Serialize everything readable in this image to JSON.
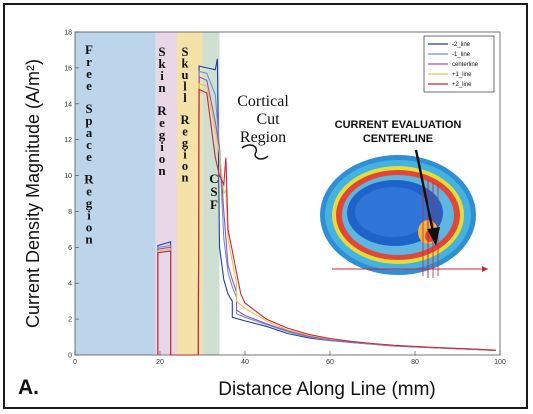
{
  "panel_label": "A.",
  "chart_data": {
    "type": "line",
    "xlabel": "Distance Along Line (mm)",
    "ylabel": "Current Density Magnitude (A/m²)",
    "xlim": [
      0,
      100
    ],
    "ylim": [
      0,
      18
    ],
    "x_ticks": [
      0,
      20,
      40,
      60,
      80,
      100
    ],
    "y_ticks": [
      0,
      2,
      4,
      6,
      8,
      10,
      12,
      14,
      16,
      18
    ],
    "regions": [
      {
        "label": "Free Space Region",
        "x_start": 0,
        "x_end": 19,
        "color": "#bcd5ea"
      },
      {
        "label": "Skin Region",
        "x_start": 19,
        "x_end": 24,
        "color": "#e9d6e6"
      },
      {
        "label": "Skull Region",
        "x_start": 24,
        "x_end": 30,
        "color": "#f4e2a8"
      },
      {
        "label": "CSF",
        "x_start": 30,
        "x_end": 34,
        "color": "#cfe0d2"
      }
    ],
    "annotations": [
      "Cortical Cut Region",
      "CURRENT EVALUATION CENTERLINE"
    ],
    "legend_position": "top-right",
    "series": [
      {
        "name": "-2_line",
        "color": "#1f3f9e",
        "points": [
          [
            19.5,
            0
          ],
          [
            19.5,
            6.1
          ],
          [
            22.5,
            6.3
          ],
          [
            22.5,
            0
          ],
          [
            29,
            0
          ],
          [
            29.2,
            16.1
          ],
          [
            31,
            16.0
          ],
          [
            33,
            15.9
          ],
          [
            33.5,
            16.5
          ],
          [
            34,
            6
          ],
          [
            35,
            4.2
          ],
          [
            36,
            3.4
          ],
          [
            37,
            3.0
          ],
          [
            37,
            2.1
          ],
          [
            40,
            1.9
          ],
          [
            45,
            1.6
          ],
          [
            50,
            1.2
          ],
          [
            55,
            0.95
          ],
          [
            60,
            0.8
          ],
          [
            65,
            0.7
          ],
          [
            70,
            0.6
          ],
          [
            75,
            0.5
          ],
          [
            80,
            0.45
          ],
          [
            85,
            0.4
          ],
          [
            90,
            0.35
          ],
          [
            95,
            0.3
          ],
          [
            99,
            0.25
          ]
        ]
      },
      {
        "name": "-1_line",
        "color": "#6a91d6",
        "points": [
          [
            19.5,
            0
          ],
          [
            19.5,
            6.0
          ],
          [
            22.5,
            6.1
          ],
          [
            22.5,
            0
          ],
          [
            29,
            0
          ],
          [
            29.2,
            15.8
          ],
          [
            31,
            15.7
          ],
          [
            33,
            14.5
          ],
          [
            34,
            11.5
          ],
          [
            35,
            6.5
          ],
          [
            36,
            4.6
          ],
          [
            37,
            3.8
          ],
          [
            38,
            3.2
          ],
          [
            38,
            2.3
          ],
          [
            40,
            2.1
          ],
          [
            45,
            1.7
          ],
          [
            50,
            1.3
          ],
          [
            55,
            1.0
          ],
          [
            60,
            0.82
          ],
          [
            65,
            0.7
          ],
          [
            70,
            0.6
          ],
          [
            75,
            0.5
          ],
          [
            80,
            0.45
          ],
          [
            85,
            0.4
          ],
          [
            90,
            0.35
          ],
          [
            95,
            0.3
          ],
          [
            99,
            0.25
          ]
        ]
      },
      {
        "name": "centerline",
        "color": "#9c52b8",
        "points": [
          [
            19.5,
            0
          ],
          [
            19.5,
            5.9
          ],
          [
            22.5,
            6.0
          ],
          [
            22.5,
            0
          ],
          [
            29,
            0
          ],
          [
            29.2,
            15.5
          ],
          [
            31,
            15.3
          ],
          [
            33,
            13.0
          ],
          [
            34,
            11.5
          ],
          [
            35,
            8.0
          ],
          [
            36,
            5.0
          ],
          [
            37,
            4.2
          ],
          [
            38,
            3.5
          ],
          [
            38,
            2.5
          ],
          [
            40,
            2.2
          ],
          [
            45,
            1.75
          ],
          [
            50,
            1.35
          ],
          [
            55,
            1.05
          ],
          [
            60,
            0.85
          ],
          [
            65,
            0.72
          ],
          [
            70,
            0.62
          ],
          [
            75,
            0.52
          ],
          [
            80,
            0.46
          ],
          [
            85,
            0.4
          ],
          [
            90,
            0.35
          ],
          [
            95,
            0.3
          ],
          [
            99,
            0.25
          ]
        ]
      },
      {
        "name": "+1_line",
        "color": "#e6c34a",
        "points": [
          [
            19.5,
            0
          ],
          [
            19.5,
            5.8
          ],
          [
            22.5,
            5.9
          ],
          [
            22.5,
            0
          ],
          [
            29,
            0
          ],
          [
            29.2,
            15.1
          ],
          [
            31,
            15.0
          ],
          [
            33,
            12.5
          ],
          [
            34,
            11.2
          ],
          [
            35,
            9.0
          ],
          [
            35.5,
            9.2
          ],
          [
            36,
            6.5
          ],
          [
            37,
            5.2
          ],
          [
            38,
            4.0
          ],
          [
            38,
            3.0
          ],
          [
            40,
            2.6
          ],
          [
            45,
            1.9
          ],
          [
            50,
            1.4
          ],
          [
            55,
            1.1
          ],
          [
            60,
            0.9
          ],
          [
            65,
            0.75
          ],
          [
            70,
            0.63
          ],
          [
            75,
            0.53
          ],
          [
            80,
            0.47
          ],
          [
            85,
            0.41
          ],
          [
            90,
            0.36
          ],
          [
            95,
            0.31
          ],
          [
            99,
            0.26
          ]
        ]
      },
      {
        "name": "+2_line",
        "color": "#c8263a",
        "points": [
          [
            19.5,
            0
          ],
          [
            19.5,
            5.7
          ],
          [
            22.5,
            5.8
          ],
          [
            22.5,
            0
          ],
          [
            29,
            0
          ],
          [
            29.2,
            14.8
          ],
          [
            31,
            14.6
          ],
          [
            33,
            11.0
          ],
          [
            34,
            10.0
          ],
          [
            35,
            9.5
          ],
          [
            35.5,
            11.0
          ],
          [
            36,
            7.0
          ],
          [
            37,
            5.8
          ],
          [
            38,
            4.6
          ],
          [
            39,
            3.4
          ],
          [
            40,
            2.9
          ],
          [
            45,
            2.0
          ],
          [
            50,
            1.5
          ],
          [
            55,
            1.15
          ],
          [
            60,
            0.92
          ],
          [
            65,
            0.76
          ],
          [
            70,
            0.64
          ],
          [
            75,
            0.54
          ],
          [
            80,
            0.48
          ],
          [
            85,
            0.42
          ],
          [
            90,
            0.37
          ],
          [
            95,
            0.32
          ],
          [
            99,
            0.27
          ]
        ]
      }
    ]
  }
}
